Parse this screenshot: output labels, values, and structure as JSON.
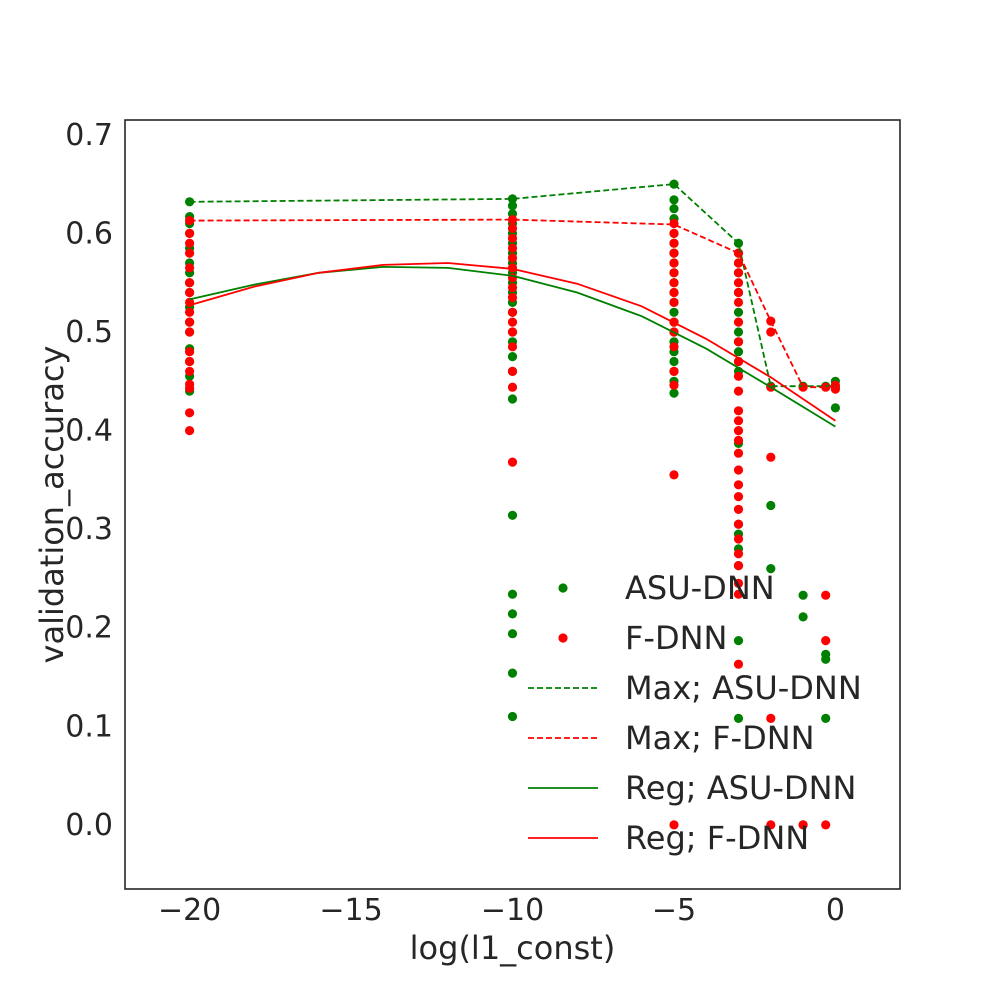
{
  "chart_data": {
    "type": "scatter",
    "title": "",
    "xlabel": "log(l1_const)",
    "ylabel": "validation_accuracy",
    "xlim": [
      -22,
      2
    ],
    "ylim": [
      -0.065,
      0.715
    ],
    "xticks": [
      -20,
      -15,
      -10,
      -5,
      0
    ],
    "xtick_labels": [
      "−20",
      "−15",
      "−10",
      "−5",
      "0"
    ],
    "yticks": [
      0.0,
      0.1,
      0.2,
      0.3,
      0.4,
      0.5,
      0.6,
      0.7
    ],
    "ytick_labels": [
      "0.0",
      "0.1",
      "0.2",
      "0.3",
      "0.4",
      "0.5",
      "0.6",
      "0.7"
    ],
    "grid": false,
    "legend_position": "lower right",
    "colors": {
      "ASU-DNN": "#008000",
      "F-DNN": "#ff0000"
    },
    "series": [
      {
        "name": "ASU-DNN",
        "kind": "scatter",
        "color": "#008000",
        "points": [
          [
            -20,
            0.632
          ],
          [
            -20,
            0.617
          ],
          [
            -20,
            0.61
          ],
          [
            -20,
            0.6
          ],
          [
            -20,
            0.585
          ],
          [
            -20,
            0.57
          ],
          [
            -20,
            0.56
          ],
          [
            -20,
            0.55
          ],
          [
            -20,
            0.54
          ],
          [
            -20,
            0.525
          ],
          [
            -20,
            0.51
          ],
          [
            -20,
            0.5
          ],
          [
            -20,
            0.483
          ],
          [
            -20,
            0.47
          ],
          [
            -20,
            0.455
          ],
          [
            -20,
            0.44
          ],
          [
            -10,
            0.635
          ],
          [
            -10,
            0.628
          ],
          [
            -10,
            0.62
          ],
          [
            -10,
            0.61
          ],
          [
            -10,
            0.6
          ],
          [
            -10,
            0.59
          ],
          [
            -10,
            0.58
          ],
          [
            -10,
            0.57
          ],
          [
            -10,
            0.56
          ],
          [
            -10,
            0.55
          ],
          [
            -10,
            0.54
          ],
          [
            -10,
            0.53
          ],
          [
            -10,
            0.52
          ],
          [
            -10,
            0.5
          ],
          [
            -10,
            0.49
          ],
          [
            -10,
            0.475
          ],
          [
            -10,
            0.46
          ],
          [
            -10,
            0.432
          ],
          [
            -10,
            0.314
          ],
          [
            -10,
            0.234
          ],
          [
            -10,
            0.214
          ],
          [
            -10,
            0.194
          ],
          [
            -10,
            0.154
          ],
          [
            -10,
            0.11
          ],
          [
            -5,
            0.65
          ],
          [
            -5,
            0.634
          ],
          [
            -5,
            0.625
          ],
          [
            -5,
            0.615
          ],
          [
            -5,
            0.6
          ],
          [
            -5,
            0.59
          ],
          [
            -5,
            0.58
          ],
          [
            -5,
            0.57
          ],
          [
            -5,
            0.56
          ],
          [
            -5,
            0.55
          ],
          [
            -5,
            0.54
          ],
          [
            -5,
            0.53
          ],
          [
            -5,
            0.52
          ],
          [
            -5,
            0.51
          ],
          [
            -5,
            0.5
          ],
          [
            -5,
            0.49
          ],
          [
            -5,
            0.48
          ],
          [
            -5,
            0.47
          ],
          [
            -5,
            0.46
          ],
          [
            -5,
            0.45
          ],
          [
            -5,
            0.438
          ],
          [
            -3,
            0.59
          ],
          [
            -3,
            0.58
          ],
          [
            -3,
            0.57
          ],
          [
            -3,
            0.56
          ],
          [
            -3,
            0.54
          ],
          [
            -3,
            0.52
          ],
          [
            -3,
            0.5
          ],
          [
            -3,
            0.49
          ],
          [
            -3,
            0.48
          ],
          [
            -3,
            0.47
          ],
          [
            -3,
            0.46
          ],
          [
            -3,
            0.387
          ],
          [
            -3,
            0.305
          ],
          [
            -3,
            0.295
          ],
          [
            -3,
            0.28
          ],
          [
            -3,
            0.263
          ],
          [
            -3,
            0.187
          ],
          [
            -3,
            0.108
          ],
          [
            -2,
            0.445
          ],
          [
            -2,
            0.324
          ],
          [
            -2,
            0.26
          ],
          [
            -1,
            0.445
          ],
          [
            -1,
            0.233
          ],
          [
            -1,
            0.211
          ],
          [
            -1,
            0.0
          ],
          [
            -0.3,
            0.445
          ],
          [
            -0.3,
            0.173
          ],
          [
            -0.3,
            0.168
          ],
          [
            -0.3,
            0.108
          ],
          [
            0,
            0.45
          ],
          [
            0,
            0.444
          ],
          [
            0,
            0.423
          ]
        ]
      },
      {
        "name": "F-DNN",
        "kind": "scatter",
        "color": "#ff0000",
        "points": [
          [
            -20,
            0.613
          ],
          [
            -20,
            0.6
          ],
          [
            -20,
            0.59
          ],
          [
            -20,
            0.58
          ],
          [
            -20,
            0.565
          ],
          [
            -20,
            0.55
          ],
          [
            -20,
            0.54
          ],
          [
            -20,
            0.53
          ],
          [
            -20,
            0.52
          ],
          [
            -20,
            0.51
          ],
          [
            -20,
            0.5
          ],
          [
            -20,
            0.48
          ],
          [
            -20,
            0.47
          ],
          [
            -20,
            0.46
          ],
          [
            -20,
            0.447
          ],
          [
            -20,
            0.443
          ],
          [
            -20,
            0.418
          ],
          [
            -20,
            0.4
          ],
          [
            -10,
            0.614
          ],
          [
            -10,
            0.605
          ],
          [
            -10,
            0.595
          ],
          [
            -10,
            0.585
          ],
          [
            -10,
            0.575
          ],
          [
            -10,
            0.565
          ],
          [
            -10,
            0.555
          ],
          [
            -10,
            0.545
          ],
          [
            -10,
            0.535
          ],
          [
            -10,
            0.52
          ],
          [
            -10,
            0.51
          ],
          [
            -10,
            0.5
          ],
          [
            -10,
            0.485
          ],
          [
            -10,
            0.46
          ],
          [
            -10,
            0.444
          ],
          [
            -10,
            0.368
          ],
          [
            -5,
            0.61
          ],
          [
            -5,
            0.6
          ],
          [
            -5,
            0.59
          ],
          [
            -5,
            0.58
          ],
          [
            -5,
            0.57
          ],
          [
            -5,
            0.56
          ],
          [
            -5,
            0.55
          ],
          [
            -5,
            0.54
          ],
          [
            -5,
            0.53
          ],
          [
            -5,
            0.51
          ],
          [
            -5,
            0.5
          ],
          [
            -5,
            0.485
          ],
          [
            -5,
            0.46
          ],
          [
            -5,
            0.446
          ],
          [
            -5,
            0.355
          ],
          [
            -5,
            0.0
          ],
          [
            -3,
            0.58
          ],
          [
            -3,
            0.57
          ],
          [
            -3,
            0.56
          ],
          [
            -3,
            0.55
          ],
          [
            -3,
            0.54
          ],
          [
            -3,
            0.53
          ],
          [
            -3,
            0.51
          ],
          [
            -3,
            0.49
          ],
          [
            -3,
            0.47
          ],
          [
            -3,
            0.455
          ],
          [
            -3,
            0.44
          ],
          [
            -3,
            0.42
          ],
          [
            -3,
            0.41
          ],
          [
            -3,
            0.4
          ],
          [
            -3,
            0.39
          ],
          [
            -3,
            0.377
          ],
          [
            -3,
            0.36
          ],
          [
            -3,
            0.345
          ],
          [
            -3,
            0.333
          ],
          [
            -3,
            0.32
          ],
          [
            -3,
            0.305
          ],
          [
            -3,
            0.29
          ],
          [
            -3,
            0.275
          ],
          [
            -3,
            0.263
          ],
          [
            -3,
            0.245
          ],
          [
            -3,
            0.234
          ],
          [
            -3,
            0.163
          ],
          [
            -2,
            0.511
          ],
          [
            -2,
            0.5
          ],
          [
            -2,
            0.444
          ],
          [
            -2,
            0.373
          ],
          [
            -2,
            0.108
          ],
          [
            -2,
            0.0
          ],
          [
            -1,
            0.444
          ],
          [
            -1,
            0.0
          ],
          [
            -0.3,
            0.444
          ],
          [
            -0.3,
            0.233
          ],
          [
            -0.3,
            0.187
          ],
          [
            -0.3,
            0.0
          ],
          [
            0,
            0.446
          ],
          [
            0,
            0.442
          ]
        ]
      },
      {
        "name": "Max; ASU-DNN",
        "kind": "line",
        "dash": true,
        "color": "#008000",
        "points": [
          [
            -20,
            0.632
          ],
          [
            -10,
            0.635
          ],
          [
            -5,
            0.65
          ],
          [
            -3,
            0.59
          ],
          [
            -2,
            0.445
          ],
          [
            -1,
            0.445
          ],
          [
            -0.3,
            0.445
          ],
          [
            0,
            0.445
          ]
        ]
      },
      {
        "name": "Max; F-DNN",
        "kind": "line",
        "dash": true,
        "color": "#ff0000",
        "points": [
          [
            -20,
            0.613
          ],
          [
            -10,
            0.614
          ],
          [
            -5,
            0.609
          ],
          [
            -3,
            0.58
          ],
          [
            -2,
            0.511
          ],
          [
            -1,
            0.444
          ],
          [
            -0.3,
            0.444
          ],
          [
            0,
            0.445
          ]
        ]
      },
      {
        "name": "Reg; ASU-DNN",
        "kind": "line",
        "dash": false,
        "color": "#008000",
        "points": [
          [
            -20,
            0.533
          ],
          [
            -18,
            0.548
          ],
          [
            -16,
            0.56
          ],
          [
            -14,
            0.566
          ],
          [
            -12,
            0.565
          ],
          [
            -10,
            0.557
          ],
          [
            -8,
            0.54
          ],
          [
            -6,
            0.516
          ],
          [
            -4,
            0.483
          ],
          [
            -2,
            0.444
          ],
          [
            0,
            0.404
          ]
        ]
      },
      {
        "name": "Reg; F-DNN",
        "kind": "line",
        "dash": false,
        "color": "#ff0000",
        "points": [
          [
            -20,
            0.527
          ],
          [
            -18,
            0.546
          ],
          [
            -16,
            0.56
          ],
          [
            -14,
            0.568
          ],
          [
            -12,
            0.57
          ],
          [
            -10,
            0.564
          ],
          [
            -8,
            0.549
          ],
          [
            -6,
            0.526
          ],
          [
            -4,
            0.493
          ],
          [
            -2,
            0.454
          ],
          [
            0,
            0.41
          ]
        ]
      }
    ]
  }
}
